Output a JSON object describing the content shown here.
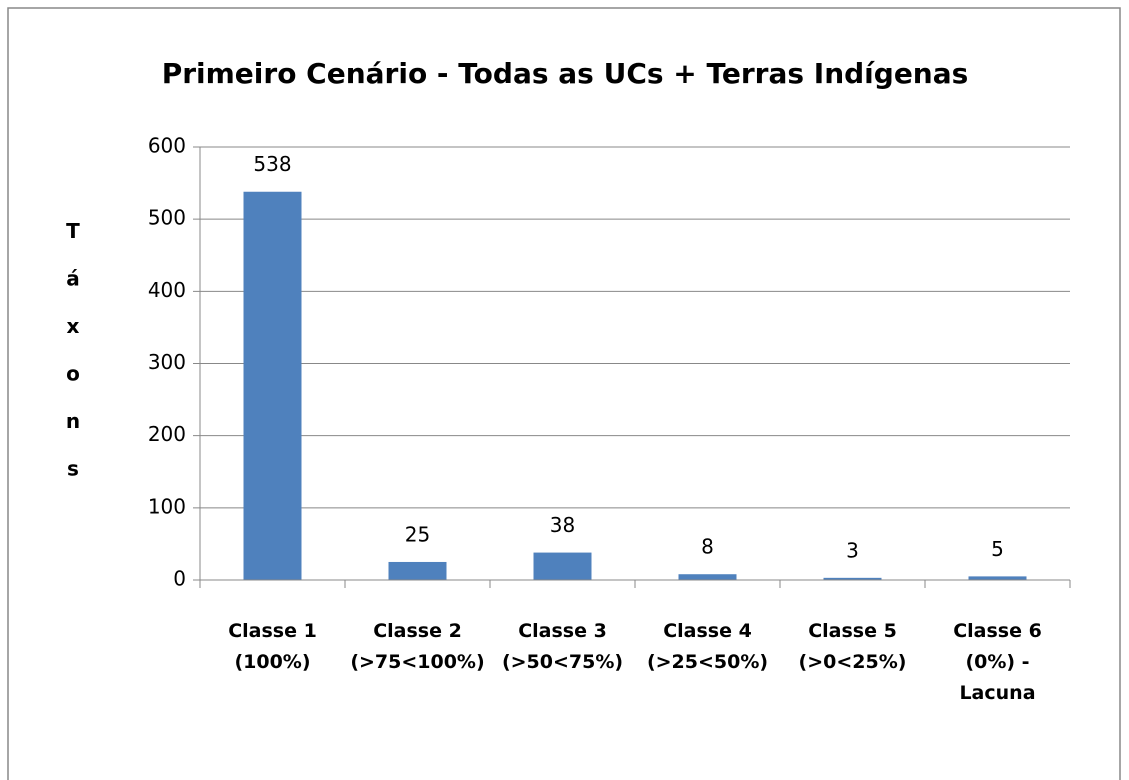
{
  "chart_data": {
    "type": "bar",
    "title": "Primeiro Cenário - Todas as UCs + Terras Indígenas",
    "y_label": "Táxons",
    "categories": [
      "Classe 1\n(100%)",
      "Classe 2\n(>75<100%)",
      "Classe 3\n(>50<75%)",
      "Classe 4\n(>25<50%)",
      "Classe 5\n(>0<25%)",
      "Classe 6\n(0%) -\nLacuna"
    ],
    "values": [
      538,
      25,
      38,
      8,
      3,
      5
    ],
    "color": "#4f81bd",
    "ylim": [
      0,
      600
    ],
    "yticks": [
      0,
      100,
      200,
      300,
      400,
      500,
      600
    ],
    "grid": true
  }
}
